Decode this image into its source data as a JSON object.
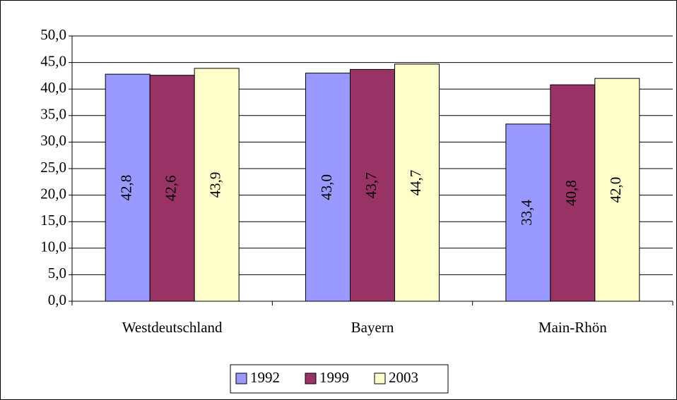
{
  "chart_data": {
    "type": "bar",
    "categories": [
      "Westdeutschland",
      "Bayern",
      "Main-Rhön"
    ],
    "series": [
      {
        "name": "1992",
        "color": "#9999ff",
        "values": [
          42.8,
          43.0,
          33.4
        ],
        "value_labels": [
          "42,8",
          "43,0",
          "33,4"
        ]
      },
      {
        "name": "1999",
        "color": "#993366",
        "values": [
          42.6,
          43.7,
          40.8
        ],
        "value_labels": [
          "42,6",
          "43,7",
          "40,8"
        ]
      },
      {
        "name": "2003",
        "color": "#ffffcc",
        "values": [
          43.9,
          44.7,
          42.0
        ],
        "value_labels": [
          "43,9",
          "44,7",
          "42,0"
        ]
      }
    ],
    "ylim": [
      0,
      50
    ],
    "yticks": [
      {
        "value": 0,
        "label": "0,0"
      },
      {
        "value": 5,
        "label": "5,0"
      },
      {
        "value": 10,
        "label": "10,0"
      },
      {
        "value": 15,
        "label": "15,0"
      },
      {
        "value": 20,
        "label": "20,0"
      },
      {
        "value": 25,
        "label": "25,0"
      },
      {
        "value": 30,
        "label": "30,0"
      },
      {
        "value": 35,
        "label": "35,0"
      },
      {
        "value": 40,
        "label": "40,0"
      },
      {
        "value": 45,
        "label": "45,0"
      },
      {
        "value": 50,
        "label": "50,0"
      }
    ],
    "grid": true,
    "legend": "bottom"
  }
}
